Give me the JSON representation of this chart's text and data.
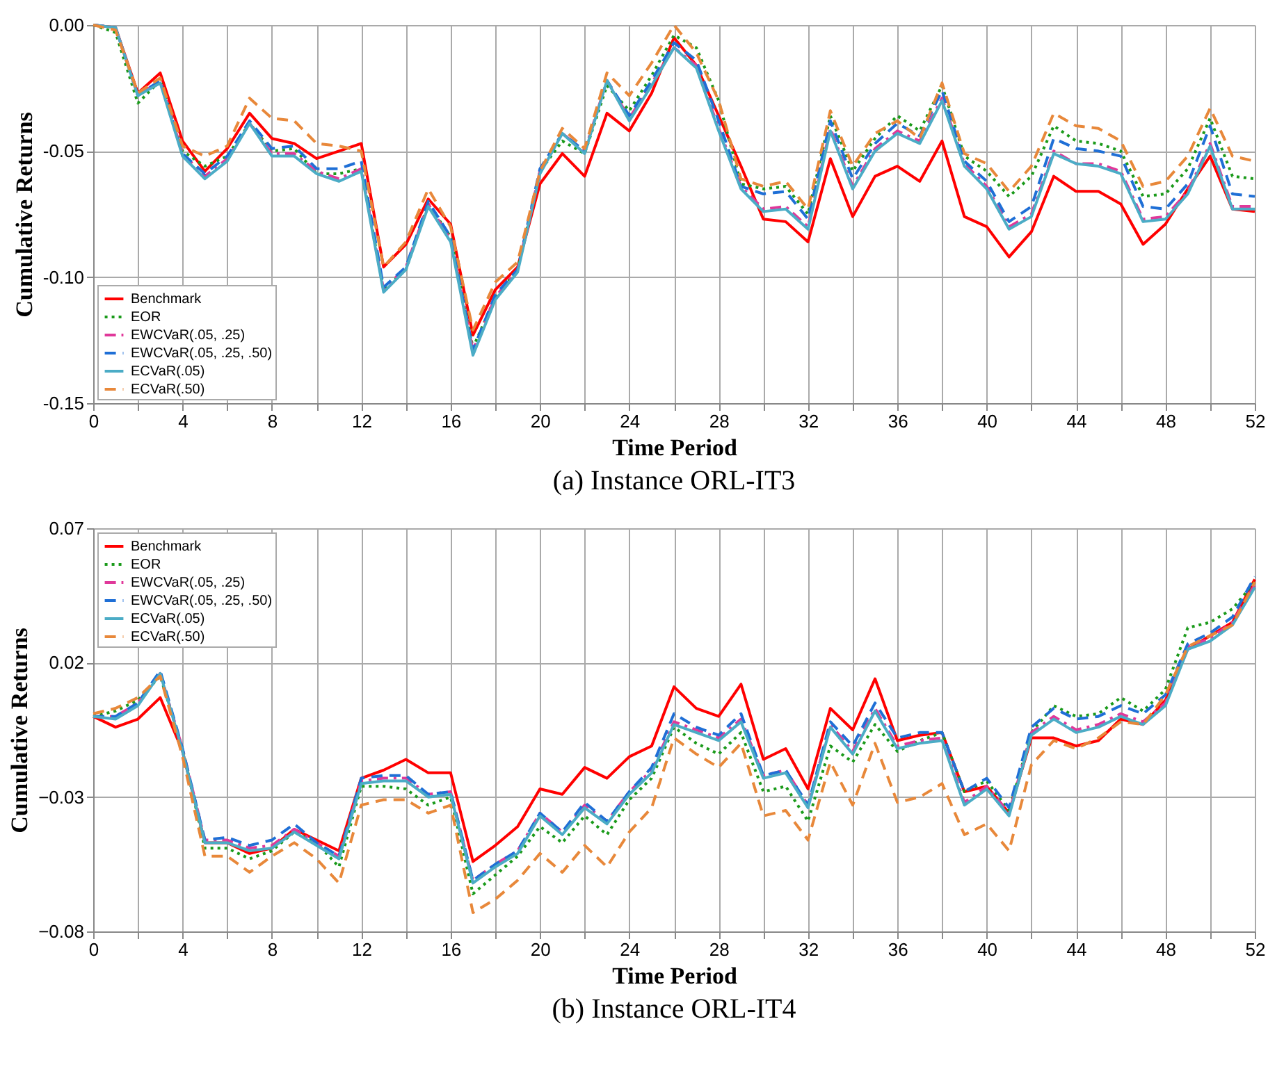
{
  "chart_data": [
    {
      "type": "line",
      "title": "(a) Instance ORL-IT3",
      "xlabel": "Time Period",
      "ylabel": "Cumulative Returns",
      "x": [
        0,
        1,
        2,
        3,
        4,
        5,
        6,
        7,
        8,
        9,
        10,
        11,
        12,
        13,
        14,
        15,
        16,
        17,
        18,
        19,
        20,
        21,
        22,
        23,
        24,
        25,
        26,
        27,
        28,
        29,
        30,
        31,
        32,
        33,
        34,
        35,
        36,
        37,
        38,
        39,
        40,
        41,
        42,
        43,
        44,
        45,
        46,
        47,
        48,
        49,
        50,
        51,
        52
      ],
      "xlim": [
        0,
        52
      ],
      "xticks": [
        0,
        {
          "value": 2,
          "label": null
        },
        4,
        {
          "value": 6,
          "label": null
        },
        8,
        {
          "value": 10,
          "label": null
        },
        12,
        {
          "value": 14,
          "label": null
        },
        16,
        {
          "value": 18,
          "label": null
        },
        20,
        {
          "value": 22,
          "label": null
        },
        24,
        {
          "value": 26,
          "label": null
        },
        28,
        {
          "value": 30,
          "label": null
        },
        32,
        {
          "value": 34,
          "label": null
        },
        36,
        {
          "value": 38,
          "label": null
        },
        40,
        {
          "value": 42,
          "label": null
        },
        44,
        {
          "value": 46,
          "label": null
        },
        48,
        {
          "value": 50,
          "label": null
        },
        52
      ],
      "ylim": [
        -0.15,
        0.0
      ],
      "yticks": [
        {
          "value": -0.15,
          "label": "-0.15"
        },
        {
          "value": -0.1,
          "label": "-0.10"
        },
        {
          "value": -0.05,
          "label": "-0.05"
        },
        {
          "value": 0.0,
          "label": "0.00"
        }
      ],
      "grid": true,
      "legend": "bottom left",
      "marker": "none",
      "series": [
        {
          "name": "Benchmark",
          "color": "#ff0000",
          "line_style": "solid",
          "values": [
            0,
            -0.001,
            -0.027,
            -0.019,
            -0.046,
            -0.058,
            -0.049,
            -0.035,
            -0.045,
            -0.047,
            -0.053,
            -0.05,
            -0.047,
            -0.096,
            -0.087,
            -0.069,
            -0.079,
            -0.123,
            -0.105,
            -0.096,
            -0.063,
            -0.051,
            -0.06,
            -0.035,
            -0.042,
            -0.027,
            -0.005,
            -0.016,
            -0.036,
            -0.056,
            -0.077,
            -0.078,
            -0.086,
            -0.053,
            -0.076,
            -0.06,
            -0.056,
            -0.062,
            -0.046,
            -0.076,
            -0.08,
            -0.092,
            -0.082,
            -0.06,
            -0.066,
            -0.066,
            -0.071,
            -0.087,
            -0.079,
            -0.065,
            -0.052,
            -0.073,
            -0.074
          ]
        },
        {
          "name": "EOR",
          "color": "#1a9a1a",
          "line_style": "dotted",
          "values": [
            0,
            -0.003,
            -0.031,
            -0.022,
            -0.05,
            -0.056,
            -0.052,
            -0.039,
            -0.05,
            -0.049,
            -0.059,
            -0.059,
            -0.057,
            -0.105,
            -0.097,
            -0.071,
            -0.084,
            -0.128,
            -0.108,
            -0.097,
            -0.058,
            -0.046,
            -0.051,
            -0.024,
            -0.034,
            -0.02,
            -0.004,
            -0.009,
            -0.03,
            -0.063,
            -0.065,
            -0.064,
            -0.075,
            -0.036,
            -0.058,
            -0.045,
            -0.036,
            -0.042,
            -0.024,
            -0.052,
            -0.058,
            -0.068,
            -0.06,
            -0.04,
            -0.046,
            -0.047,
            -0.05,
            -0.068,
            -0.067,
            -0.057,
            -0.037,
            -0.06,
            -0.061
          ]
        },
        {
          "name": "EWCVaR(.05, .25)",
          "color": "#e0389a",
          "line_style": "dashdot",
          "values": [
            0,
            -0.001,
            -0.028,
            -0.022,
            -0.051,
            -0.06,
            -0.053,
            -0.039,
            -0.051,
            -0.051,
            -0.058,
            -0.061,
            -0.057,
            -0.105,
            -0.096,
            -0.071,
            -0.085,
            -0.129,
            -0.108,
            -0.097,
            -0.058,
            -0.043,
            -0.05,
            -0.022,
            -0.037,
            -0.023,
            -0.009,
            -0.016,
            -0.041,
            -0.064,
            -0.073,
            -0.072,
            -0.08,
            -0.041,
            -0.064,
            -0.049,
            -0.042,
            -0.046,
            -0.029,
            -0.055,
            -0.064,
            -0.08,
            -0.075,
            -0.05,
            -0.055,
            -0.055,
            -0.058,
            -0.077,
            -0.076,
            -0.066,
            -0.047,
            -0.072,
            -0.072
          ]
        },
        {
          "name": "EWCVaR(.05, .25, .50)",
          "color": "#1f6fd6",
          "line_style": "dashed",
          "values": [
            0,
            -0.001,
            -0.028,
            -0.022,
            -0.051,
            -0.059,
            -0.052,
            -0.038,
            -0.049,
            -0.048,
            -0.057,
            -0.057,
            -0.054,
            -0.104,
            -0.096,
            -0.07,
            -0.084,
            -0.129,
            -0.107,
            -0.097,
            -0.057,
            -0.043,
            -0.05,
            -0.022,
            -0.036,
            -0.022,
            -0.007,
            -0.014,
            -0.038,
            -0.064,
            -0.067,
            -0.066,
            -0.077,
            -0.038,
            -0.061,
            -0.047,
            -0.039,
            -0.044,
            -0.026,
            -0.054,
            -0.062,
            -0.078,
            -0.072,
            -0.045,
            -0.049,
            -0.05,
            -0.052,
            -0.072,
            -0.073,
            -0.063,
            -0.04,
            -0.067,
            -0.068
          ]
        },
        {
          "name": "ECVaR(.05)",
          "color": "#4bacc6",
          "line_style": "solid",
          "values": [
            0,
            -0.001,
            -0.028,
            -0.023,
            -0.052,
            -0.061,
            -0.054,
            -0.039,
            -0.052,
            -0.052,
            -0.059,
            -0.062,
            -0.058,
            -0.106,
            -0.097,
            -0.072,
            -0.086,
            -0.131,
            -0.109,
            -0.098,
            -0.059,
            -0.043,
            -0.051,
            -0.022,
            -0.038,
            -0.024,
            -0.009,
            -0.017,
            -0.042,
            -0.065,
            -0.074,
            -0.073,
            -0.081,
            -0.042,
            -0.065,
            -0.05,
            -0.043,
            -0.047,
            -0.03,
            -0.056,
            -0.065,
            -0.081,
            -0.076,
            -0.051,
            -0.055,
            -0.056,
            -0.059,
            -0.078,
            -0.077,
            -0.067,
            -0.048,
            -0.073,
            -0.073
          ]
        },
        {
          "name": "ECVaR(.50)",
          "color": "#e8883a",
          "line_style": "dashed",
          "values": [
            0,
            -0.002,
            -0.027,
            -0.021,
            -0.048,
            -0.052,
            -0.048,
            -0.029,
            -0.037,
            -0.038,
            -0.047,
            -0.048,
            -0.05,
            -0.096,
            -0.086,
            -0.065,
            -0.08,
            -0.121,
            -0.102,
            -0.094,
            -0.058,
            -0.041,
            -0.049,
            -0.019,
            -0.028,
            -0.015,
            0.0,
            -0.011,
            -0.03,
            -0.061,
            -0.064,
            -0.062,
            -0.073,
            -0.034,
            -0.056,
            -0.043,
            -0.038,
            -0.045,
            -0.023,
            -0.051,
            -0.055,
            -0.066,
            -0.056,
            -0.035,
            -0.04,
            -0.041,
            -0.046,
            -0.064,
            -0.062,
            -0.052,
            -0.033,
            -0.052,
            -0.054
          ]
        }
      ]
    },
    {
      "type": "line",
      "title": "(b) Instance ORL-IT4",
      "xlabel": "Time Period",
      "ylabel": "Cumulative Returns",
      "x": [
        0,
        1,
        2,
        3,
        4,
        5,
        6,
        7,
        8,
        9,
        10,
        11,
        12,
        13,
        14,
        15,
        16,
        17,
        18,
        19,
        20,
        21,
        22,
        23,
        24,
        25,
        26,
        27,
        28,
        29,
        30,
        31,
        32,
        33,
        34,
        35,
        36,
        37,
        38,
        39,
        40,
        41,
        42,
        43,
        44,
        45,
        46,
        47,
        48,
        49,
        50,
        51,
        52
      ],
      "xlim": [
        0,
        52
      ],
      "xticks": [
        0,
        {
          "value": 2,
          "label": null
        },
        4,
        {
          "value": 6,
          "label": null
        },
        8,
        {
          "value": 10,
          "label": null
        },
        12,
        {
          "value": 14,
          "label": null
        },
        16,
        {
          "value": 18,
          "label": null
        },
        20,
        {
          "value": 22,
          "label": null
        },
        24,
        {
          "value": 26,
          "label": null
        },
        28,
        {
          "value": 30,
          "label": null
        },
        32,
        {
          "value": 34,
          "label": null
        },
        36,
        {
          "value": 38,
          "label": null
        },
        40,
        {
          "value": 42,
          "label": null
        },
        44,
        {
          "value": 46,
          "label": null
        },
        48,
        {
          "value": 50,
          "label": null
        },
        52
      ],
      "ylim": [
        -0.08,
        0.07
      ],
      "yticks": [
        -0.08,
        -0.03,
        0.02,
        0.07
      ],
      "grid": true,
      "legend": "top left",
      "marker": "none",
      "series": [
        {
          "name": "Benchmark",
          "color": "#ff0000",
          "line_style": "solid",
          "values": [
            0,
            -0.004,
            -0.001,
            0.007,
            -0.013,
            -0.047,
            -0.047,
            -0.051,
            -0.049,
            -0.042,
            -0.046,
            -0.05,
            -0.023,
            -0.02,
            -0.016,
            -0.021,
            -0.021,
            -0.054,
            -0.048,
            -0.041,
            -0.027,
            -0.029,
            -0.019,
            -0.023,
            -0.015,
            -0.011,
            0.011,
            0.003,
            0.0,
            0.012,
            -0.016,
            -0.012,
            -0.027,
            0.003,
            -0.005,
            0.014,
            -0.009,
            -0.007,
            -0.006,
            -0.028,
            -0.026,
            -0.036,
            -0.008,
            -0.008,
            -0.011,
            -0.009,
            -0.001,
            -0.003,
            0.006,
            0.025,
            0.03,
            0.035,
            0.051
          ]
        },
        {
          "name": "EOR",
          "color": "#1a9a1a",
          "line_style": "dotted",
          "values": [
            0,
            0.002,
            0.006,
            0.015,
            -0.012,
            -0.049,
            -0.049,
            -0.053,
            -0.05,
            -0.043,
            -0.047,
            -0.056,
            -0.026,
            -0.026,
            -0.027,
            -0.033,
            -0.03,
            -0.066,
            -0.059,
            -0.052,
            -0.041,
            -0.047,
            -0.037,
            -0.044,
            -0.031,
            -0.023,
            -0.004,
            -0.01,
            -0.014,
            -0.006,
            -0.028,
            -0.026,
            -0.039,
            -0.011,
            -0.017,
            -0.003,
            -0.013,
            -0.009,
            -0.006,
            -0.028,
            -0.024,
            -0.035,
            -0.006,
            0.004,
            0.0,
            0.001,
            0.007,
            0.002,
            0.01,
            0.033,
            0.035,
            0.04,
            0.05
          ]
        },
        {
          "name": "EWCVaR(.05, .25)",
          "color": "#e0389a",
          "line_style": "dashdot",
          "values": [
            0,
            0.0,
            0.005,
            0.016,
            -0.012,
            -0.046,
            -0.046,
            -0.049,
            -0.048,
            -0.042,
            -0.047,
            -0.052,
            -0.024,
            -0.023,
            -0.023,
            -0.029,
            -0.028,
            -0.061,
            -0.055,
            -0.05,
            -0.036,
            -0.043,
            -0.033,
            -0.039,
            -0.028,
            -0.02,
            -0.002,
            -0.005,
            -0.008,
            -0.001,
            -0.022,
            -0.02,
            -0.033,
            -0.003,
            -0.013,
            0.003,
            -0.011,
            -0.009,
            -0.008,
            -0.032,
            -0.026,
            -0.036,
            -0.006,
            0.0,
            -0.005,
            -0.003,
            0.001,
            -0.002,
            0.005,
            0.026,
            0.029,
            0.035,
            0.049
          ]
        },
        {
          "name": "EWCVaR(.05, .25, .50)",
          "color": "#1f6fd6",
          "line_style": "dashed",
          "values": [
            0,
            0.0,
            0.005,
            0.017,
            -0.012,
            -0.046,
            -0.045,
            -0.048,
            -0.046,
            -0.04,
            -0.047,
            -0.052,
            -0.023,
            -0.022,
            -0.022,
            -0.029,
            -0.028,
            -0.061,
            -0.055,
            -0.05,
            -0.036,
            -0.043,
            -0.032,
            -0.039,
            -0.028,
            -0.019,
            0.001,
            -0.004,
            -0.007,
            0.001,
            -0.022,
            -0.02,
            -0.033,
            -0.002,
            -0.011,
            0.005,
            -0.008,
            -0.006,
            -0.006,
            -0.028,
            -0.023,
            -0.034,
            -0.004,
            0.003,
            -0.001,
            0.0,
            0.004,
            0.001,
            0.008,
            0.027,
            0.031,
            0.037,
            0.052
          ]
        },
        {
          "name": "ECVaR(.05)",
          "color": "#4bacc6",
          "line_style": "solid",
          "values": [
            0,
            -0.001,
            0.004,
            0.016,
            -0.013,
            -0.047,
            -0.047,
            -0.05,
            -0.049,
            -0.043,
            -0.048,
            -0.053,
            -0.025,
            -0.024,
            -0.024,
            -0.03,
            -0.029,
            -0.062,
            -0.056,
            -0.051,
            -0.037,
            -0.044,
            -0.034,
            -0.04,
            -0.029,
            -0.021,
            -0.003,
            -0.006,
            -0.009,
            -0.002,
            -0.023,
            -0.021,
            -0.034,
            -0.004,
            -0.014,
            0.002,
            -0.012,
            -0.01,
            -0.009,
            -0.033,
            -0.027,
            -0.037,
            -0.007,
            -0.001,
            -0.006,
            -0.004,
            0.0,
            -0.003,
            0.004,
            0.025,
            0.028,
            0.034,
            0.048
          ]
        },
        {
          "name": "ECVaR(.50)",
          "color": "#e8883a",
          "line_style": "dashed",
          "values": [
            0.001,
            0.003,
            0.007,
            0.015,
            -0.015,
            -0.052,
            -0.052,
            -0.058,
            -0.052,
            -0.047,
            -0.053,
            -0.062,
            -0.033,
            -0.031,
            -0.031,
            -0.036,
            -0.033,
            -0.073,
            -0.068,
            -0.061,
            -0.051,
            -0.058,
            -0.048,
            -0.056,
            -0.043,
            -0.034,
            -0.008,
            -0.014,
            -0.019,
            -0.01,
            -0.037,
            -0.035,
            -0.046,
            -0.017,
            -0.033,
            -0.01,
            -0.032,
            -0.03,
            -0.025,
            -0.044,
            -0.04,
            -0.05,
            -0.018,
            -0.009,
            -0.012,
            -0.008,
            -0.002,
            -0.003,
            0.008,
            0.026,
            0.03,
            0.034,
            0.05
          ]
        }
      ]
    }
  ]
}
